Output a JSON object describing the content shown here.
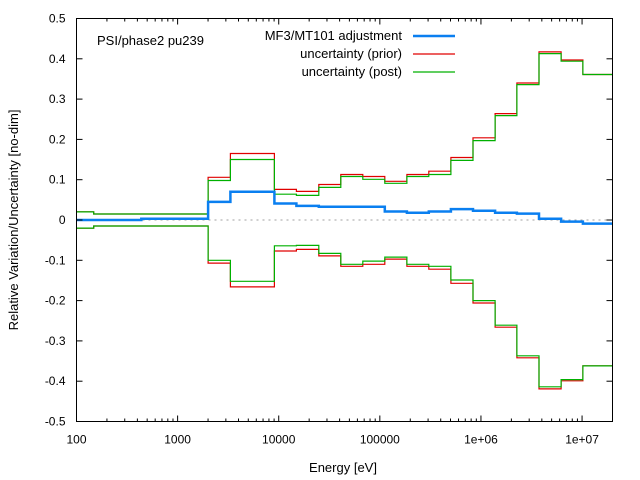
{
  "chart_data": {
    "type": "line",
    "style": "step",
    "title": "",
    "annotation": "PSI/phase2 pu239",
    "xlabel": "Energy [eV]",
    "ylabel": "Relative Variation/Uncertainty [no-dim]",
    "xscale": "log",
    "xlim": [
      100,
      20000000
    ],
    "ylim": [
      -0.5,
      0.5
    ],
    "x_ticks": [
      100,
      1000,
      10000,
      100000,
      1000000,
      10000000
    ],
    "x_tick_labels": [
      "100",
      "1000",
      "10000",
      "100000",
      "1e+06",
      "1e+07"
    ],
    "y_ticks": [
      0.5,
      0.4,
      0.3,
      0.2,
      0.1,
      0,
      -0.1,
      -0.2,
      -0.3,
      -0.4,
      -0.5
    ],
    "y_tick_labels": [
      "0.5",
      "0.4",
      "0.3",
      "0.2",
      "0.1",
      "0",
      "-0.1",
      "-0.2",
      "-0.3",
      "-0.4",
      "-0.5"
    ],
    "zero_line": {
      "style": "dotted",
      "color": "#a0a0a0"
    },
    "legend_position": "top-right",
    "bin_edges": [
      100,
      148,
      437,
      2000,
      3330,
      9070,
      14960,
      24900,
      41100,
      67900,
      112000,
      185000,
      305000,
      505000,
      834000,
      1380000,
      2270000,
      3750000,
      6200000,
      10200000,
      20000000
    ],
    "series": [
      {
        "name": "MF3/MT101 adjustment",
        "color": "#0a7ff0",
        "mirror": false,
        "values": [
          0.0,
          0.0,
          0.003,
          0.045,
          0.07,
          0.041,
          0.035,
          0.033,
          0.033,
          0.033,
          0.021,
          0.018,
          0.021,
          0.027,
          0.023,
          0.018,
          0.016,
          0.003,
          -0.004,
          -0.009
        ]
      },
      {
        "name": "uncertainty (prior)",
        "color": "#e00000",
        "mirror": true,
        "values": [
          0.02,
          0.015,
          0.015,
          0.106,
          0.165,
          0.076,
          0.071,
          0.088,
          0.113,
          0.108,
          0.096,
          0.113,
          0.121,
          0.155,
          0.204,
          0.264,
          0.34,
          0.417,
          0.397,
          0.361
        ],
        "lower_values": [
          -0.02,
          -0.015,
          -0.015,
          -0.107,
          -0.166,
          -0.077,
          -0.073,
          -0.089,
          -0.115,
          -0.11,
          -0.097,
          -0.115,
          -0.122,
          -0.157,
          -0.206,
          -0.266,
          -0.342,
          -0.419,
          -0.399,
          -0.362
        ]
      },
      {
        "name": "uncertainty (post)",
        "color": "#00b000",
        "mirror": true,
        "values": [
          0.02,
          0.015,
          0.015,
          0.098,
          0.15,
          0.064,
          0.061,
          0.081,
          0.108,
          0.101,
          0.091,
          0.108,
          0.113,
          0.148,
          0.197,
          0.259,
          0.336,
          0.413,
          0.394,
          0.361
        ],
        "lower_values": [
          -0.02,
          -0.015,
          -0.015,
          -0.1,
          -0.152,
          -0.064,
          -0.063,
          -0.083,
          -0.11,
          -0.102,
          -0.092,
          -0.11,
          -0.115,
          -0.149,
          -0.2,
          -0.261,
          -0.337,
          -0.414,
          -0.396,
          -0.362
        ]
      }
    ]
  }
}
